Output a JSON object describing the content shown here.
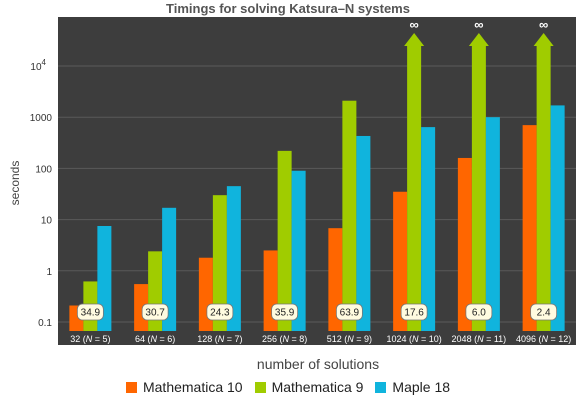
{
  "chart_data": {
    "type": "bar",
    "title": "Timings for solving Katsura–N systems",
    "xlabel": "number of solutions",
    "ylabel": "seconds",
    "yscale": "log",
    "ylim": [
      0.06,
      50000
    ],
    "categories": [
      "32  (N = 5)",
      "64  (N = 6)",
      "128  (N = 7)",
      "256  (N = 8)",
      "512  (N = 9)",
      "1024  (N = 10)",
      "2048  (N = 11)",
      "4096  (N = 12)"
    ],
    "category_parts": [
      {
        "n": "32",
        "N": "5"
      },
      {
        "n": "64",
        "N": "6"
      },
      {
        "n": "128",
        "N": "7"
      },
      {
        "n": "256",
        "N": "8"
      },
      {
        "n": "512",
        "N": "9"
      },
      {
        "n": "1024",
        "N": "10"
      },
      {
        "n": "2048",
        "N": "11"
      },
      {
        "n": "4096",
        "N": "12"
      }
    ],
    "series": [
      {
        "name": "Mathematica 10",
        "color": "#ff6600",
        "values": [
          0.21,
          0.55,
          1.8,
          2.5,
          6.8,
          35,
          160,
          700
        ]
      },
      {
        "name": "Mathematica 9",
        "color": "#a0cc00",
        "values": [
          0.62,
          2.4,
          30,
          220,
          2100,
          null,
          null,
          null
        ],
        "infinite": [
          false,
          false,
          false,
          false,
          false,
          true,
          true,
          true
        ]
      },
      {
        "name": "Maple 18",
        "color": "#10b4dd",
        "values": [
          7.5,
          17,
          45,
          90,
          430,
          640,
          1000,
          1700
        ]
      }
    ],
    "infinity_label": "∞",
    "speedup_labels": [
      "34.9",
      "30.7",
      "24.3",
      "35.9",
      "63.9",
      "17.6",
      "6.0",
      "2.4"
    ],
    "yticks": [
      {
        "value": 0.1,
        "label": "0.1"
      },
      {
        "value": 1,
        "label": "1"
      },
      {
        "value": 10,
        "label": "10"
      },
      {
        "value": 100,
        "label": "100"
      },
      {
        "value": 1000,
        "label": "1000"
      },
      {
        "value": 10000,
        "label": "10",
        "exponent": "4"
      }
    ],
    "grid": true,
    "legend_position": "bottom"
  },
  "colors": {
    "background": "#3d3d3d",
    "grid": "#5a5a5a",
    "axis_text": "#ffffff",
    "bubble_fill": "#fffbe0"
  }
}
